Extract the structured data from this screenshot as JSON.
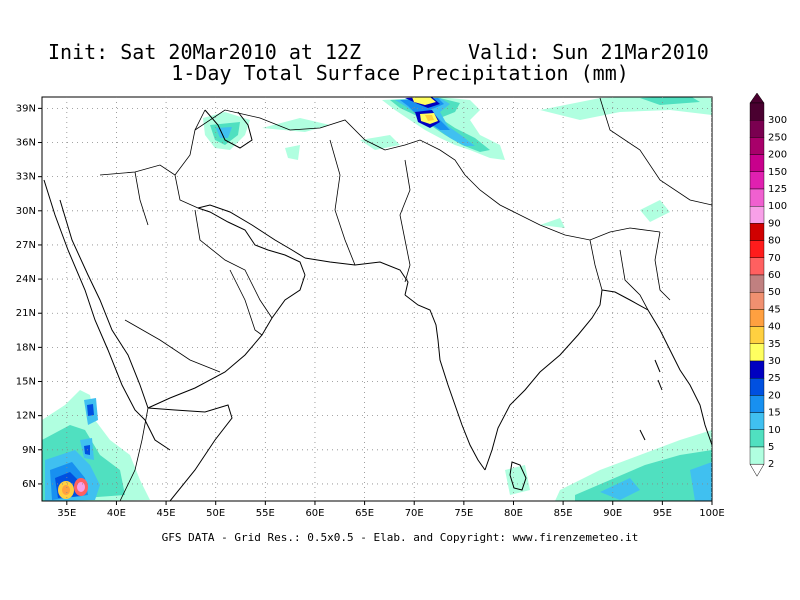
{
  "header": {
    "init": "Init: Sat 20Mar2010 at 12Z",
    "valid": "Valid: Sun 21Mar2010",
    "subtitle": "1-Day Total Surface Precipitation (mm)"
  },
  "footer": "GFS DATA - Grid Res.: 0.5x0.5 - Elab. and Copyright: www.firenzemeteo.it",
  "axes": {
    "lat_labels": [
      "39N",
      "36N",
      "33N",
      "30N",
      "27N",
      "24N",
      "21N",
      "18N",
      "15N",
      "12N",
      "9N",
      "6N"
    ],
    "lon_labels": [
      "35E",
      "40E",
      "45E",
      "50E",
      "55E",
      "60E",
      "65E",
      "70E",
      "75E",
      "80E",
      "85E",
      "90E",
      "95E",
      "100E"
    ]
  },
  "colorbar": {
    "labels": [
      "300",
      "250",
      "200",
      "150",
      "125",
      "100",
      "90",
      "80",
      "70",
      "60",
      "50",
      "45",
      "40",
      "35",
      "30",
      "25",
      "20",
      "15",
      "10",
      "5",
      "2"
    ],
    "colors": [
      "#4a0030",
      "#7a0050",
      "#a8006a",
      "#c8008c",
      "#e020b0",
      "#f060d0",
      "#f8a0e8",
      "#d00000",
      "#ff1c1c",
      "#ff6060",
      "#c08080",
      "#f09070",
      "#ffa040",
      "#ffd040",
      "#ffff60",
      "#0000c0",
      "#0050e0",
      "#1890f0",
      "#40c0f0",
      "#50e0c0",
      "#b0ffe0"
    ]
  },
  "map": {
    "extent": {
      "lon_min": 32.5,
      "lon_max": 100,
      "lat_min": 4.5,
      "lat_max": 40
    },
    "gridlines": "dotted",
    "precip_areas": [
      {
        "lon": 72.3,
        "lat": 38.6,
        "mm": 20
      },
      {
        "lon": 72.1,
        "lat": 36.8,
        "mm": 30
      },
      {
        "lon": 73.8,
        "lat": 36.0,
        "mm": 15
      },
      {
        "lon": 50.5,
        "lat": 36.5,
        "mm": 10
      },
      {
        "lon": 36.5,
        "lat": 6.2,
        "mm": 50
      },
      {
        "lon": 34.8,
        "lat": 6.0,
        "mm": 35
      },
      {
        "lon": 37.2,
        "lat": 12.5,
        "mm": 15
      },
      {
        "lon": 88.5,
        "lat": 5.5,
        "mm": 10
      },
      {
        "lon": 99.0,
        "lat": 8.0,
        "mm": 5
      },
      {
        "lon": 89.5,
        "lat": 38.8,
        "mm": 5
      }
    ]
  }
}
